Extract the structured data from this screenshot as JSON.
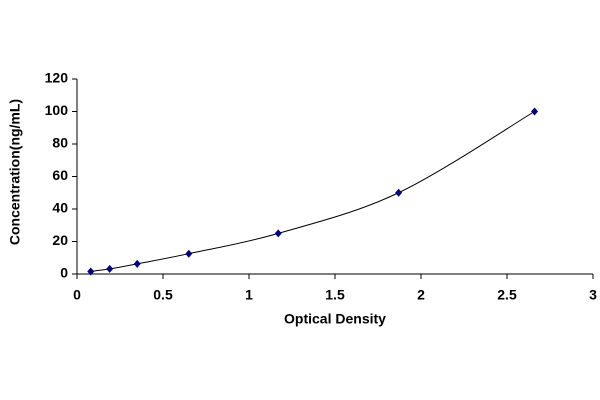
{
  "chart_data": {
    "type": "line",
    "x_label": "Optical Density",
    "y_label": "Concentration(ng/mL)",
    "x": [
      0.08,
      0.19,
      0.35,
      0.65,
      1.17,
      1.87,
      2.66
    ],
    "series": [
      {
        "color": "#000080",
        "values": [
          1.56,
          3.125,
          6.25,
          12.5,
          25,
          50,
          100
        ]
      }
    ],
    "xlim": [
      0,
      3
    ],
    "xticks": [
      0,
      0.5,
      1,
      1.5,
      2,
      2.5,
      3
    ],
    "ylim": [
      0,
      120
    ],
    "yticks": [
      0,
      20,
      40,
      60,
      80,
      100,
      120
    ],
    "grid": false,
    "smooth": true
  }
}
